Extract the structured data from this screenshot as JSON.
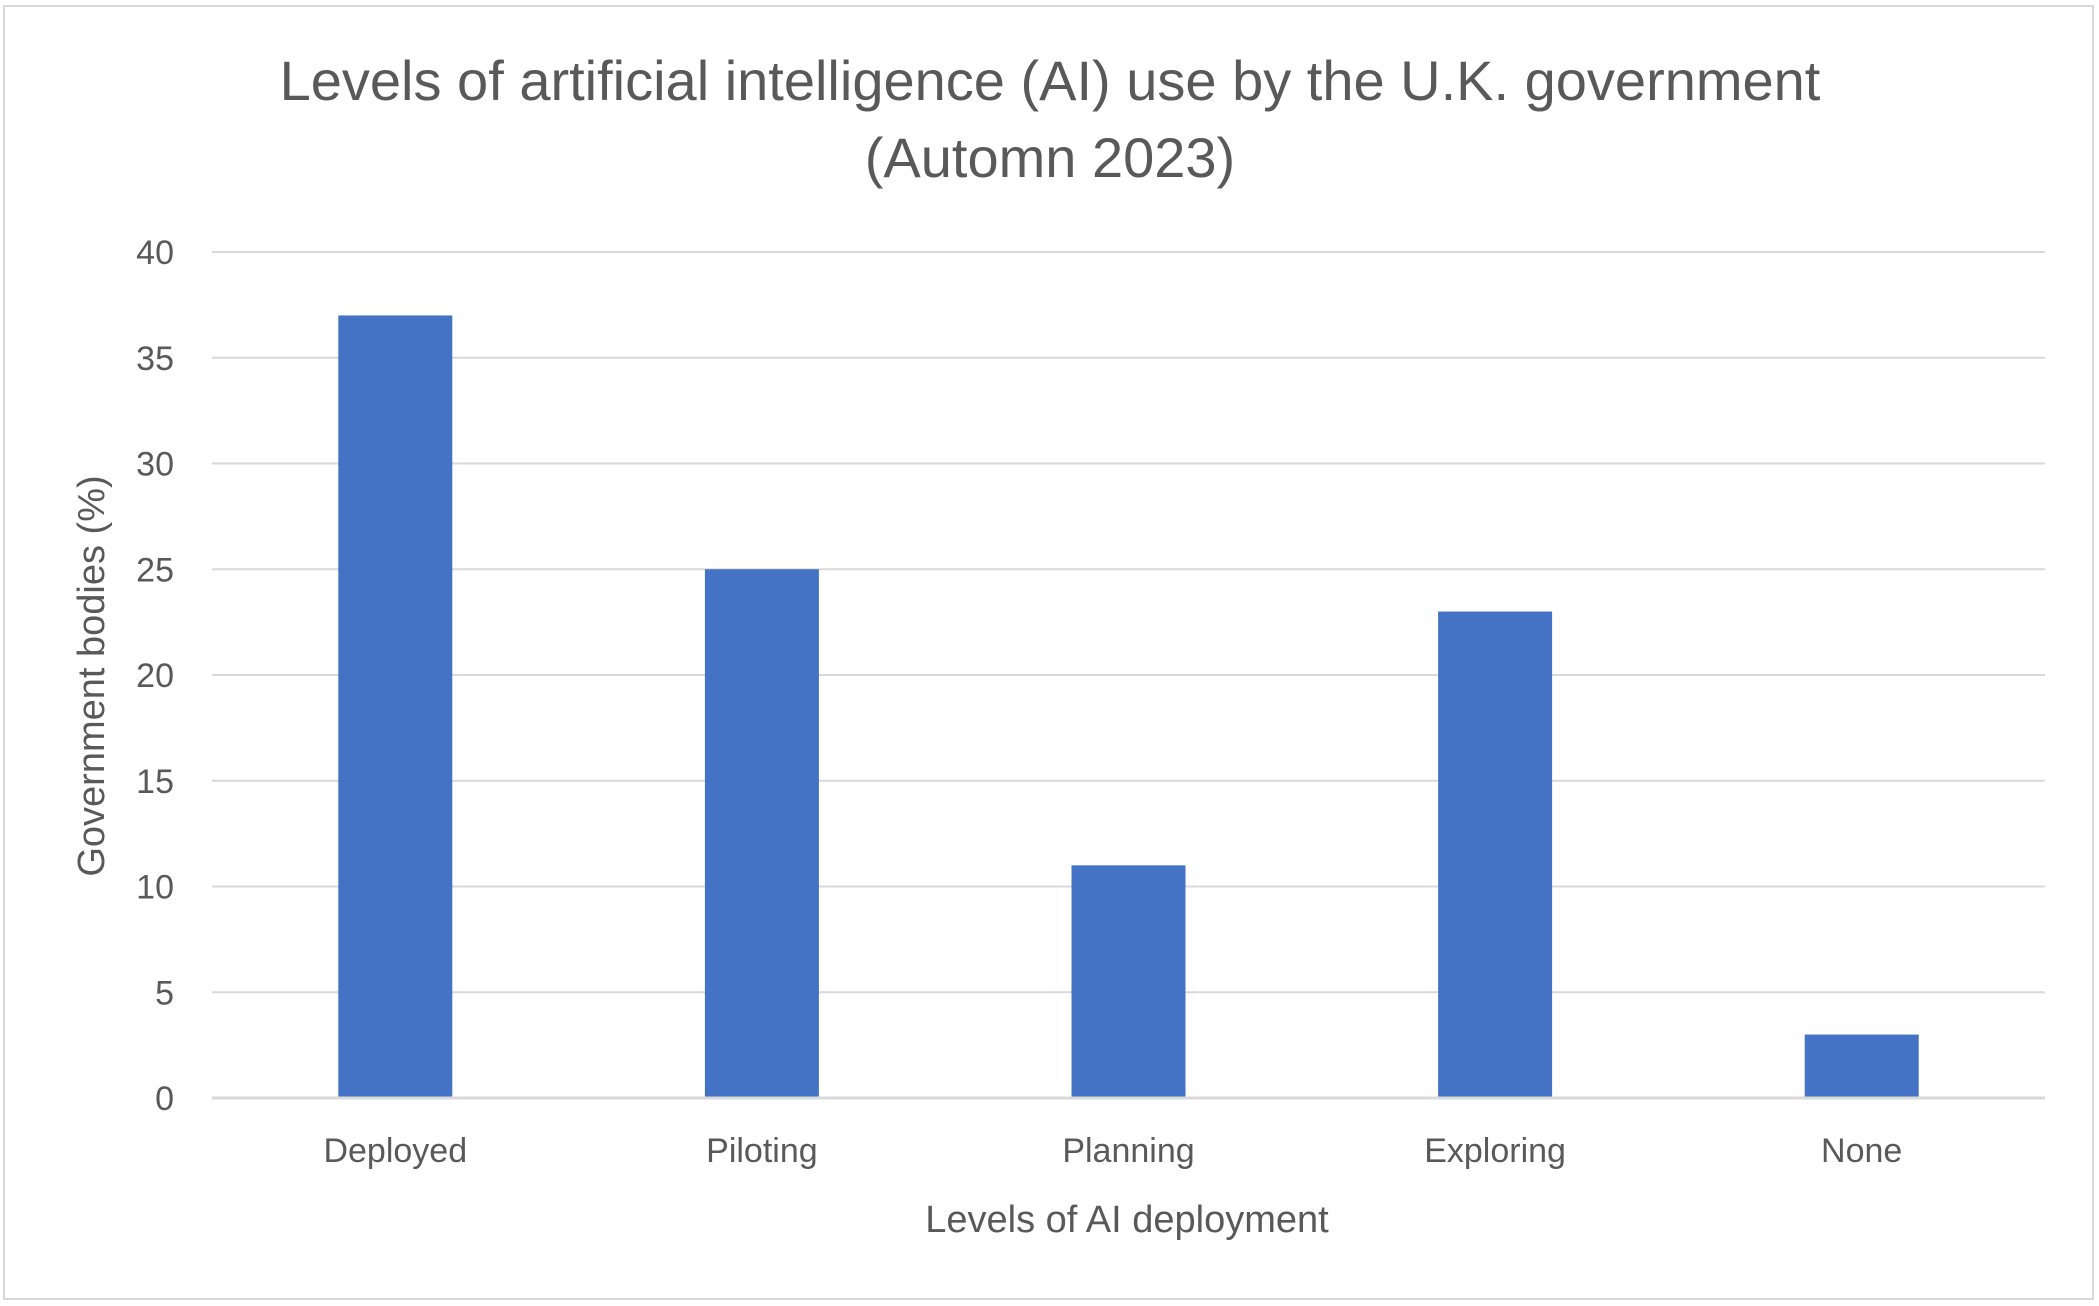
{
  "chart_data": {
    "type": "bar",
    "title_lines": [
      "Levels of artificial intelligence (AI) use by the U.K. government",
      "(Automn 2023)"
    ],
    "categories": [
      "Deployed",
      "Piloting",
      "Planning",
      "Exploring",
      "None"
    ],
    "values": [
      37,
      25,
      11,
      23,
      3
    ],
    "xlabel": "Levels of AI deployment",
    "ylabel": "Government bodies (%)",
    "ylim": [
      0,
      40
    ],
    "yticks": [
      0,
      5,
      10,
      15,
      20,
      25,
      30,
      35,
      40
    ],
    "grid": true,
    "legend": "none",
    "colors": {
      "bar": "#4472C4",
      "grid": "#d9d9d9",
      "text": "#595959"
    }
  }
}
